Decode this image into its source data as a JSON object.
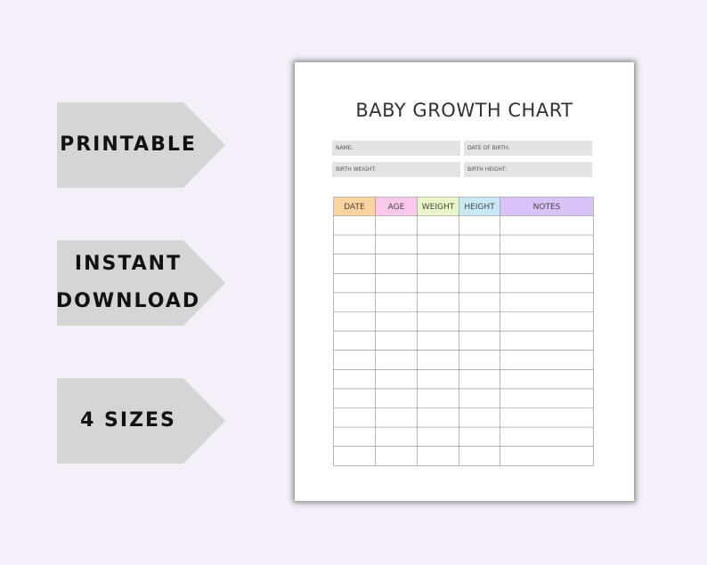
{
  "tags": [
    [
      "PRINTABLE"
    ],
    [
      "INSTANT",
      "DOWNLOAD"
    ],
    [
      "4 SIZES"
    ]
  ],
  "document": {
    "title": "BABY GROWTH CHART",
    "fields": [
      "NAME:",
      "DATE OF BIRTH:",
      "BIRTH WEIGHT:",
      "BIRTH HEIGHT:"
    ],
    "table": {
      "headers": [
        "DATE",
        "AGE",
        "WEIGHT",
        "HEIGHT",
        "NOTES"
      ]
    }
  }
}
